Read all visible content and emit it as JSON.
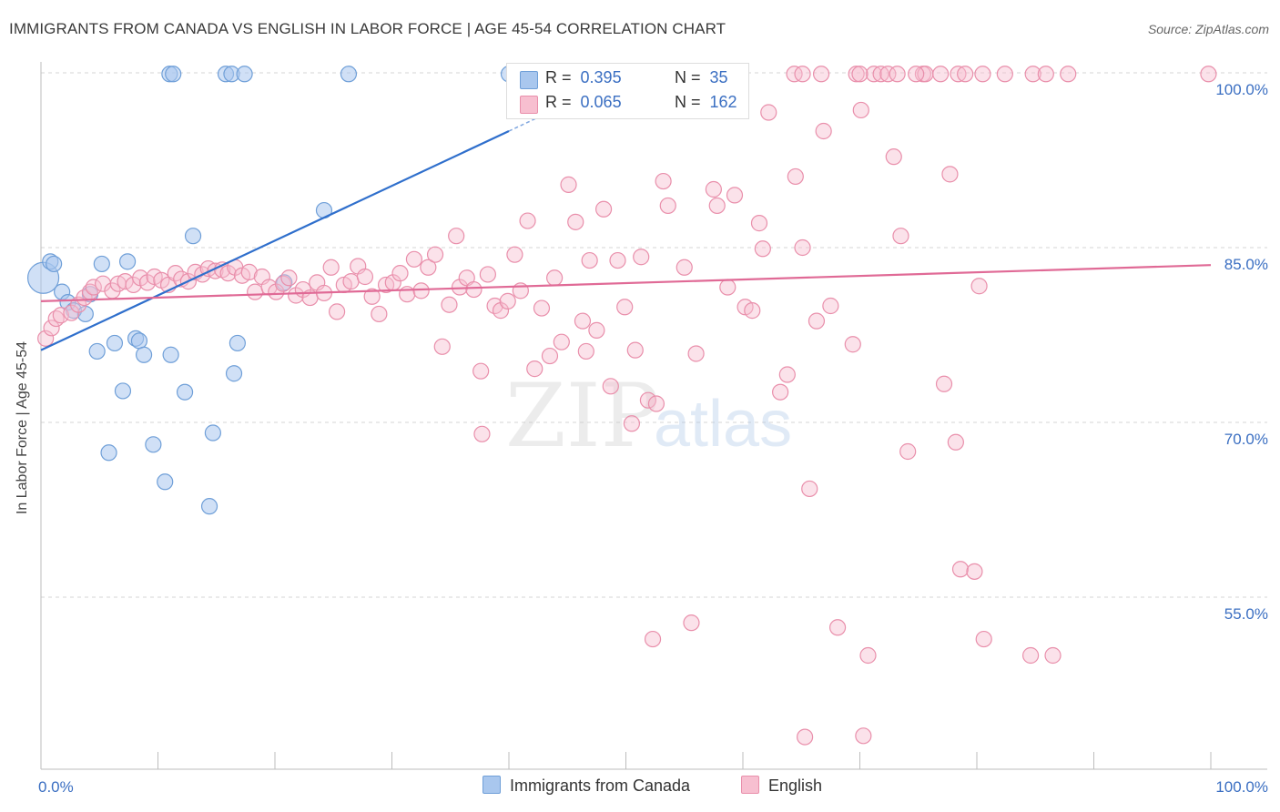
{
  "title": "IMMIGRANTS FROM CANADA VS ENGLISH IN LABOR FORCE | AGE 45-54 CORRELATION CHART",
  "source": "Source: ZipAtlas.com",
  "watermark": {
    "zip": "ZIP",
    "atlas": "atlas"
  },
  "legend": {
    "r_label": "R =",
    "n_label": "N =",
    "items": [
      {
        "name": "Immigrants from Canada",
        "r": "0.395",
        "n": "35",
        "color": "#a9c7ee",
        "edge": "#6f9fd8"
      },
      {
        "name": "English",
        "r": "0.065",
        "n": "162",
        "color": "#f7bfd0",
        "edge": "#e98fab"
      }
    ]
  },
  "chart_data": {
    "type": "scatter",
    "title": "IMMIGRANTS FROM CANADA VS ENGLISH IN LABOR FORCE | AGE 45-54 CORRELATION CHART",
    "xlabel": "",
    "ylabel": "In Labor Force | Age 45-54",
    "xlim": [
      0,
      100
    ],
    "ylim": [
      42,
      100
    ],
    "x_tick_labels": [
      "0.0%",
      "100.0%"
    ],
    "y_ticks": [
      55,
      70,
      85,
      100
    ],
    "y_tick_labels": [
      "55.0%",
      "70.0%",
      "85.0%",
      "100.0%"
    ],
    "grid": "horizontal dashed",
    "legend_position": "top-center",
    "series": [
      {
        "name": "Immigrants from Canada",
        "color": "#a9c7ee",
        "trend": {
          "x": [
            0,
            40
          ],
          "y": [
            76.2,
            95.0
          ]
        },
        "points": [
          [
            0.2,
            82.4
          ],
          [
            0.8,
            83.8
          ],
          [
            1.1,
            83.6
          ],
          [
            1.8,
            81.2
          ],
          [
            2.3,
            80.3
          ],
          [
            2.8,
            79.6
          ],
          [
            3.8,
            79.3
          ],
          [
            4.2,
            81.0
          ],
          [
            5.2,
            83.6
          ],
          [
            7.4,
            83.8
          ],
          [
            4.8,
            76.1
          ],
          [
            6.3,
            76.8
          ],
          [
            8.1,
            77.2
          ],
          [
            8.4,
            77.0
          ],
          [
            11.1,
            75.8
          ],
          [
            8.8,
            75.8
          ],
          [
            7.0,
            72.7
          ],
          [
            12.3,
            72.6
          ],
          [
            14.7,
            69.1
          ],
          [
            9.6,
            68.1
          ],
          [
            5.8,
            67.4
          ],
          [
            10.6,
            64.9
          ],
          [
            14.4,
            62.8
          ],
          [
            13.0,
            86.0
          ],
          [
            16.8,
            76.8
          ],
          [
            16.5,
            74.2
          ],
          [
            20.8,
            82.0
          ],
          [
            24.2,
            88.2
          ],
          [
            11.0,
            99.9
          ],
          [
            11.3,
            99.9
          ],
          [
            15.8,
            99.9
          ],
          [
            16.3,
            99.9
          ],
          [
            17.4,
            99.9
          ],
          [
            26.3,
            99.9
          ],
          [
            40.0,
            99.9
          ]
        ]
      },
      {
        "name": "English",
        "color": "#f7bfd0",
        "trend": {
          "x": [
            0,
            100
          ],
          "y": [
            80.4,
            83.5
          ]
        },
        "points": [
          [
            0.4,
            77.2
          ],
          [
            0.9,
            78.1
          ],
          [
            1.3,
            78.9
          ],
          [
            1.7,
            79.2
          ],
          [
            2.6,
            79.4
          ],
          [
            3.2,
            80.1
          ],
          [
            3.7,
            80.7
          ],
          [
            4.2,
            81.2
          ],
          [
            4.5,
            81.6
          ],
          [
            5.3,
            81.9
          ],
          [
            6.1,
            81.3
          ],
          [
            6.6,
            81.9
          ],
          [
            7.2,
            82.1
          ],
          [
            7.9,
            81.8
          ],
          [
            8.5,
            82.4
          ],
          [
            9.1,
            82.0
          ],
          [
            9.7,
            82.5
          ],
          [
            10.3,
            82.2
          ],
          [
            10.9,
            81.8
          ],
          [
            11.5,
            82.8
          ],
          [
            12.0,
            82.3
          ],
          [
            12.6,
            82.1
          ],
          [
            13.2,
            82.9
          ],
          [
            13.8,
            82.7
          ],
          [
            14.3,
            83.2
          ],
          [
            14.9,
            83.0
          ],
          [
            15.5,
            83.1
          ],
          [
            16.0,
            82.8
          ],
          [
            16.6,
            83.3
          ],
          [
            17.2,
            82.6
          ],
          [
            17.8,
            82.9
          ],
          [
            18.3,
            81.2
          ],
          [
            18.9,
            82.5
          ],
          [
            19.5,
            81.6
          ],
          [
            20.1,
            81.2
          ],
          [
            20.7,
            81.9
          ],
          [
            21.2,
            82.4
          ],
          [
            21.8,
            80.9
          ],
          [
            22.4,
            81.4
          ],
          [
            23.0,
            80.7
          ],
          [
            23.6,
            82.0
          ],
          [
            24.2,
            81.1
          ],
          [
            24.8,
            83.3
          ],
          [
            25.3,
            79.5
          ],
          [
            25.9,
            81.8
          ],
          [
            26.5,
            82.1
          ],
          [
            27.1,
            83.4
          ],
          [
            27.7,
            82.5
          ],
          [
            28.3,
            80.8
          ],
          [
            28.9,
            79.3
          ],
          [
            29.5,
            81.8
          ],
          [
            30.1,
            82.0
          ],
          [
            30.7,
            82.8
          ],
          [
            31.3,
            81.0
          ],
          [
            31.9,
            84.0
          ],
          [
            32.5,
            81.3
          ],
          [
            33.1,
            83.3
          ],
          [
            33.7,
            84.4
          ],
          [
            34.3,
            76.5
          ],
          [
            34.9,
            80.1
          ],
          [
            35.5,
            86.0
          ],
          [
            35.8,
            81.6
          ],
          [
            36.4,
            82.4
          ],
          [
            37.0,
            81.4
          ],
          [
            37.6,
            74.4
          ],
          [
            37.7,
            69.0
          ],
          [
            38.2,
            82.7
          ],
          [
            38.8,
            80.0
          ],
          [
            39.3,
            79.6
          ],
          [
            39.9,
            80.4
          ],
          [
            40.5,
            84.4
          ],
          [
            41.0,
            81.3
          ],
          [
            41.6,
            87.3
          ],
          [
            42.2,
            74.6
          ],
          [
            42.8,
            79.8
          ],
          [
            43.5,
            75.7
          ],
          [
            43.9,
            82.4
          ],
          [
            44.5,
            76.9
          ],
          [
            45.1,
            90.4
          ],
          [
            45.7,
            87.2
          ],
          [
            46.3,
            78.7
          ],
          [
            46.6,
            76.1
          ],
          [
            46.9,
            83.9
          ],
          [
            47.5,
            77.9
          ],
          [
            48.1,
            88.3
          ],
          [
            48.7,
            73.1
          ],
          [
            49.3,
            83.9
          ],
          [
            49.9,
            79.9
          ],
          [
            50.5,
            69.9
          ],
          [
            50.8,
            76.2
          ],
          [
            51.3,
            84.2
          ],
          [
            51.9,
            71.9
          ],
          [
            52.6,
            71.6
          ],
          [
            52.3,
            51.4
          ],
          [
            53.2,
            90.7
          ],
          [
            53.6,
            88.6
          ],
          [
            55.0,
            83.3
          ],
          [
            55.6,
            52.8
          ],
          [
            56.0,
            75.9
          ],
          [
            57.5,
            90.0
          ],
          [
            57.8,
            88.6
          ],
          [
            58.7,
            81.6
          ],
          [
            59.3,
            89.5
          ],
          [
            60.2,
            79.9
          ],
          [
            60.8,
            79.6
          ],
          [
            61.4,
            87.1
          ],
          [
            61.7,
            84.9
          ],
          [
            62.2,
            96.6
          ],
          [
            63.2,
            72.6
          ],
          [
            63.8,
            74.1
          ],
          [
            64.5,
            91.1
          ],
          [
            65.1,
            85.0
          ],
          [
            65.7,
            64.3
          ],
          [
            66.3,
            78.7
          ],
          [
            66.9,
            95.0
          ],
          [
            67.5,
            80.0
          ],
          [
            68.1,
            52.4
          ],
          [
            69.4,
            76.7
          ],
          [
            70.1,
            96.8
          ],
          [
            70.7,
            50.0
          ],
          [
            71.2,
            99.9
          ],
          [
            71.8,
            99.9
          ],
          [
            72.4,
            99.9
          ],
          [
            72.9,
            92.8
          ],
          [
            73.5,
            86.0
          ],
          [
            74.1,
            67.5
          ],
          [
            75.4,
            99.9
          ],
          [
            75.6,
            99.9
          ],
          [
            76.9,
            99.9
          ],
          [
            77.2,
            73.3
          ],
          [
            77.7,
            91.3
          ],
          [
            78.2,
            68.3
          ],
          [
            78.6,
            57.4
          ],
          [
            79.8,
            57.2
          ],
          [
            80.2,
            81.7
          ],
          [
            80.6,
            51.4
          ],
          [
            82.4,
            99.9
          ],
          [
            84.6,
            50.0
          ],
          [
            86.5,
            50.0
          ],
          [
            64.4,
            99.9
          ],
          [
            65.1,
            99.9
          ],
          [
            66.7,
            99.9
          ],
          [
            69.7,
            99.9
          ],
          [
            70.0,
            99.9
          ],
          [
            73.2,
            99.9
          ],
          [
            74.8,
            99.9
          ],
          [
            78.4,
            99.9
          ],
          [
            79.0,
            99.9
          ],
          [
            80.5,
            99.9
          ],
          [
            84.8,
            99.9
          ],
          [
            85.9,
            99.9
          ],
          [
            87.8,
            99.9
          ],
          [
            99.8,
            99.9
          ],
          [
            65.3,
            43.0
          ],
          [
            70.3,
            43.1
          ]
        ]
      }
    ]
  }
}
